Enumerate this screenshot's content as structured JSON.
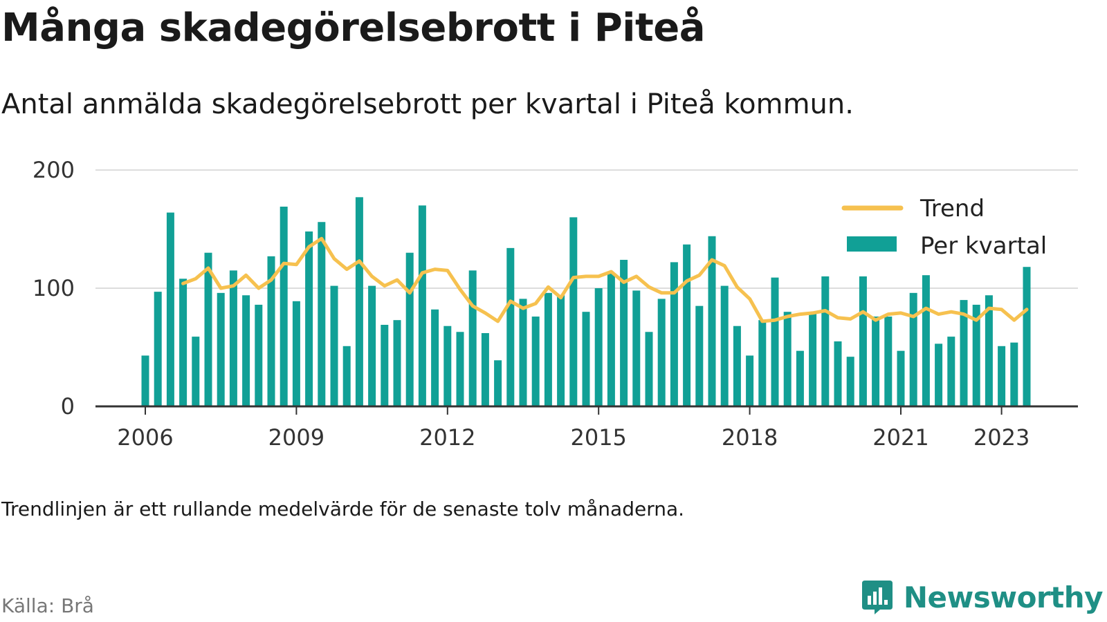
{
  "header": {
    "title": "Många skadegörelsebrott i Piteå",
    "subtitle": "Antal anmälda skadegörelsebrott per kvartal i Piteå kommun."
  },
  "footer": {
    "note": "Trendlinjen är ett rullande medelvärde för de senaste tolv månaderna.",
    "source": "Källa: Brå",
    "brand": "Newsworthy"
  },
  "colors": {
    "bar": "#11a096",
    "trend": "#f6c14f",
    "grid": "#dddddd",
    "axis": "#333333",
    "brand": "#1f8f85"
  },
  "chart_data": {
    "type": "bar",
    "title": "Många skadegörelsebrott i Piteå",
    "subtitle": "Antal anmälda skadegörelsebrott per kvartal i Piteå kommun.",
    "xlabel": "",
    "ylabel": "",
    "ylim": [
      0,
      200
    ],
    "yticks": [
      0,
      100,
      200
    ],
    "xticks": [
      "2006",
      "2009",
      "2012",
      "2015",
      "2018",
      "2021",
      "2023"
    ],
    "grid": true,
    "legend_position": "top-right",
    "x_start": "2006 Q1",
    "series": [
      {
        "name": "Per kvartal",
        "type": "bar",
        "color": "#11a096",
        "values": [
          43,
          97,
          164,
          108,
          59,
          130,
          96,
          115,
          94,
          86,
          127,
          169,
          89,
          148,
          156,
          102,
          51,
          177,
          102,
          69,
          73,
          130,
          170,
          82,
          68,
          63,
          115,
          62,
          39,
          134,
          91,
          76,
          96,
          94,
          160,
          80,
          100,
          113,
          124,
          98,
          63,
          91,
          122,
          137,
          85,
          144,
          102,
          68,
          43,
          73,
          109,
          80,
          47,
          79,
          110,
          55,
          42,
          110,
          76,
          76,
          47,
          96,
          111,
          53,
          59,
          90,
          86,
          94,
          51,
          54,
          118
        ]
      },
      {
        "name": "Trend",
        "type": "line",
        "color": "#f6c14f",
        "values": [
          null,
          null,
          null,
          104,
          108,
          117,
          100,
          102,
          111,
          100,
          107,
          121,
          120,
          135,
          142,
          125,
          116,
          123,
          110,
          102,
          107,
          96,
          113,
          116,
          115,
          99,
          85,
          79,
          72,
          89,
          83,
          87,
          101,
          92,
          109,
          110,
          110,
          114,
          105,
          110,
          101,
          96,
          96,
          106,
          111,
          124,
          119,
          101,
          91,
          72,
          73,
          76,
          78,
          79,
          81,
          75,
          74,
          80,
          73,
          78,
          79,
          76,
          83,
          78,
          80,
          78,
          73,
          83,
          82,
          73,
          82
        ]
      }
    ]
  }
}
